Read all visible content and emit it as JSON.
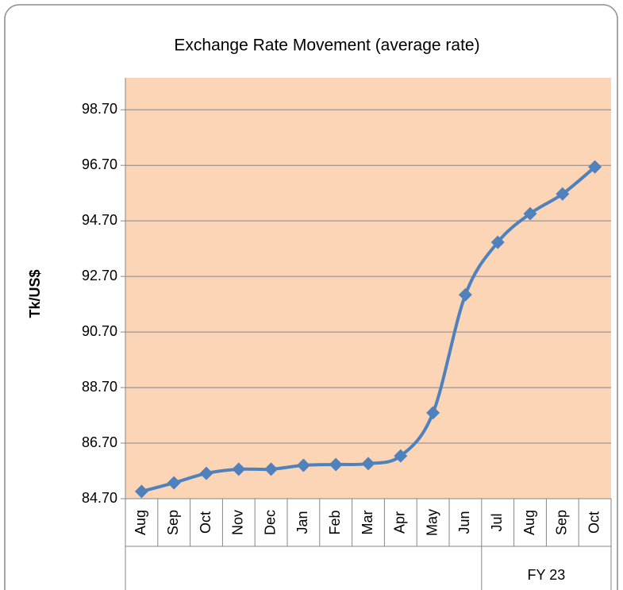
{
  "chart_data": {
    "type": "line",
    "title": "Exchange Rate Movement (average rate)",
    "y_label": "Tk/US$",
    "categories": [
      "Aug",
      "Sep",
      "Oct",
      "Nov",
      "Dec",
      "Jan",
      "Feb",
      "Mar",
      "Apr",
      "May",
      "Jun",
      "Jul",
      "Aug",
      "Sep",
      "Oct"
    ],
    "groups": [
      {
        "label": "FY 23",
        "span": [
          11,
          14
        ]
      }
    ],
    "series": [
      {
        "name": "Tk/US$",
        "color": "#4f81bd",
        "values": [
          84.96,
          85.27,
          85.61,
          85.76,
          85.76,
          85.9,
          85.93,
          85.96,
          86.24,
          87.79,
          92.04,
          93.93,
          94.96,
          95.67,
          96.64
        ]
      }
    ],
    "ylim": [
      84.7,
      99.85
    ],
    "yticks": [
      {
        "value": 84.7,
        "label": "84.70"
      },
      {
        "value": 86.7,
        "label": "86.70"
      },
      {
        "value": 88.7,
        "label": "88.70"
      },
      {
        "value": 90.7,
        "label": "90.70"
      },
      {
        "value": 92.7,
        "label": "92.70"
      },
      {
        "value": 94.7,
        "label": "94.70"
      },
      {
        "value": 96.7,
        "label": "96.70"
      },
      {
        "value": 98.7,
        "label": "98.70"
      }
    ],
    "grid": true,
    "smooth": true,
    "plot_background": "#fbd5b5"
  }
}
